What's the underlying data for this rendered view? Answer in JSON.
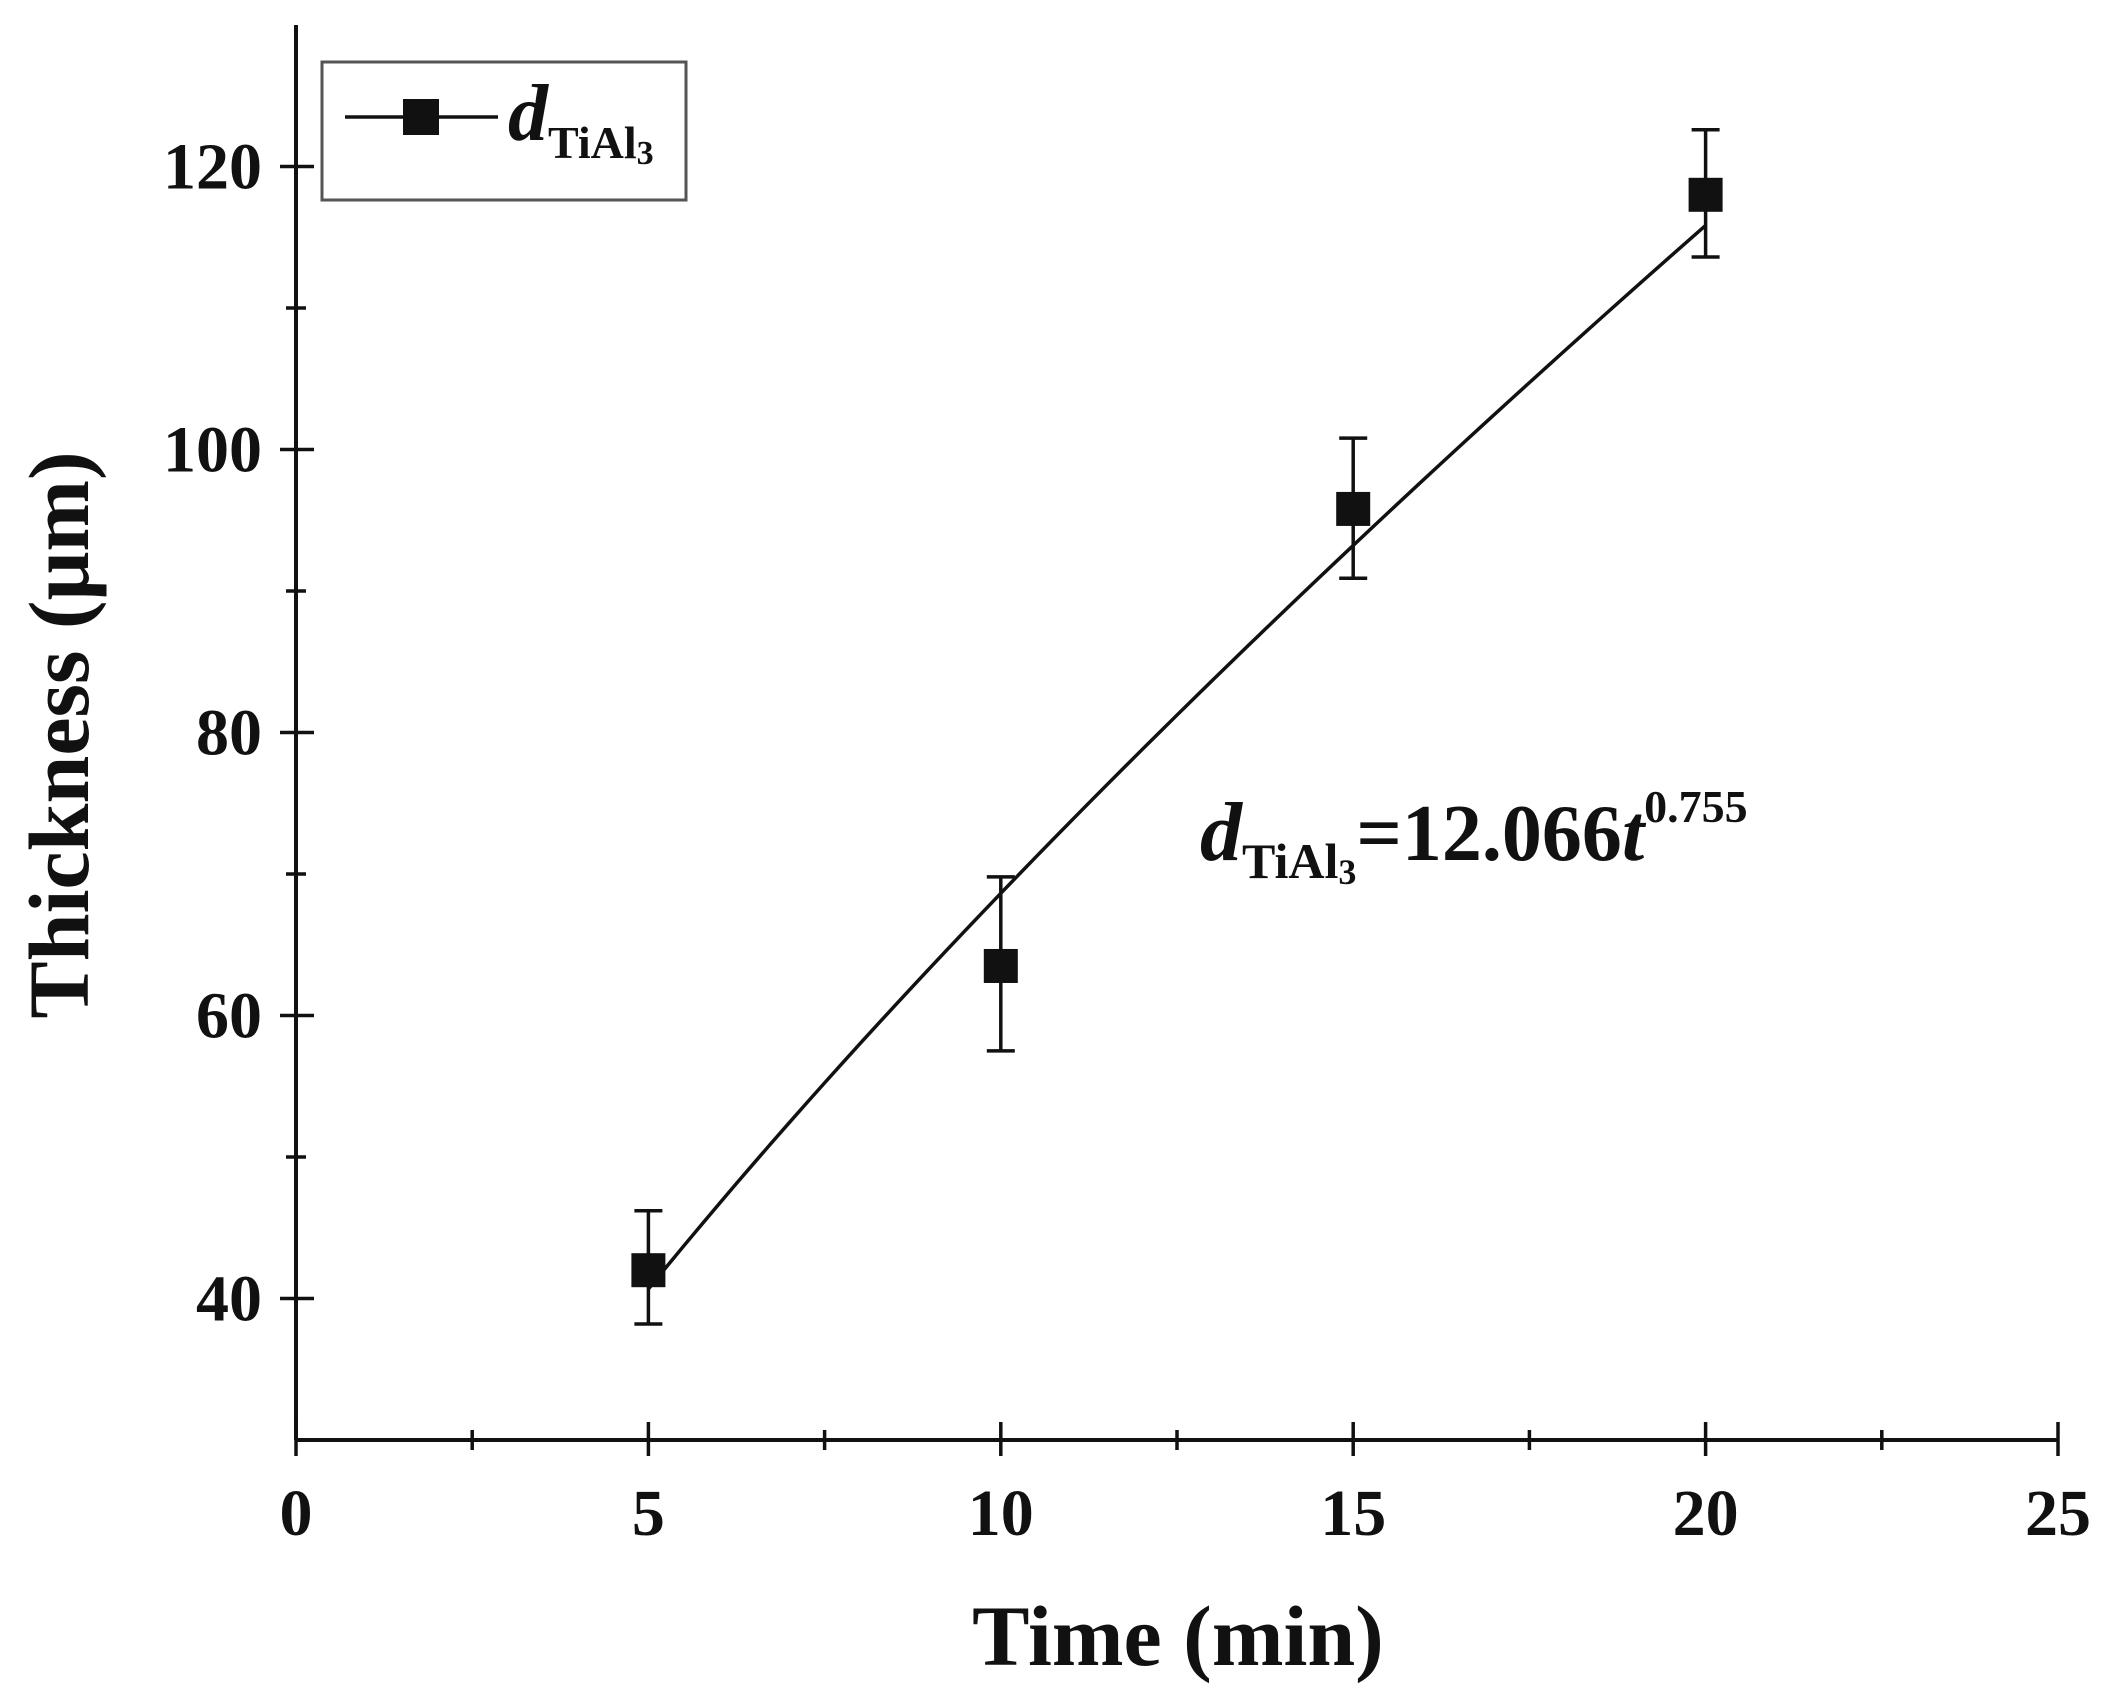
{
  "chart_data": {
    "type": "scatter",
    "xlabel": "Time (min)",
    "ylabel": "Thickness (μm)",
    "xlim": [
      0,
      25
    ],
    "ylim": [
      30,
      130
    ],
    "xticks": [
      0,
      5,
      10,
      15,
      20,
      25
    ],
    "xtick_labels": [
      "0",
      "5",
      "10",
      "15",
      "20",
      "25"
    ],
    "yticks": [
      40,
      60,
      80,
      100,
      120
    ],
    "ytick_labels": [
      "40",
      "60",
      "80",
      "100",
      "120"
    ],
    "grid": false,
    "legend": {
      "position": "top-left",
      "entries": [
        {
          "symbol": "d",
          "subscript": "TiAl",
          "subsub": "3"
        }
      ]
    },
    "series": [
      {
        "name": "dTiAl3",
        "color": "#111111",
        "marker": "square",
        "x": [
          5,
          10,
          15,
          20
        ],
        "y": [
          42,
          63.5,
          95.8,
          118
        ],
        "err_low": [
          38.2,
          57.5,
          90.9,
          113.6
        ],
        "err_high": [
          46.2,
          69.8,
          100.8,
          122.6
        ]
      }
    ],
    "fit": {
      "type": "power",
      "a": 12.066,
      "b": 0.755,
      "x_from": 5,
      "x_to": 20
    },
    "annotations": [
      {
        "symbol": "d",
        "subscript": "TiAl",
        "subsub": "3",
        "text": "=12.066",
        "var": "t",
        "exponent": "0.755"
      }
    ]
  }
}
